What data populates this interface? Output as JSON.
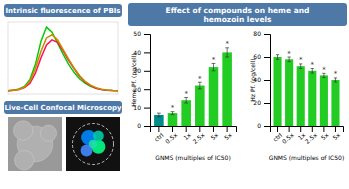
{
  "chart_data": [
    {
      "type": "line",
      "title": "Intrinsic fluorescence of PBIs",
      "annotations": [
        "Live-Cell Confocal Microscopy"
      ],
      "x": [
        0,
        0.05,
        0.1,
        0.15,
        0.2,
        0.25,
        0.3,
        0.35,
        0.4,
        0.45,
        0.5,
        0.55,
        0.6,
        0.65,
        0.7,
        0.75,
        0.8,
        0.85,
        0.9,
        0.95,
        1.0
      ],
      "series": [
        {
          "color": "#00cc00",
          "values": [
            0.0,
            0.01,
            0.03,
            0.07,
            0.18,
            0.42,
            0.78,
            1.0,
            0.92,
            0.75,
            0.58,
            0.42,
            0.29,
            0.19,
            0.12,
            0.07,
            0.04,
            0.02,
            0.01,
            0.005,
            0.002
          ]
        },
        {
          "color": "#ff1155",
          "values": [
            0.0,
            0.01,
            0.02,
            0.05,
            0.12,
            0.28,
            0.52,
            0.72,
            0.8,
            0.76,
            0.63,
            0.48,
            0.35,
            0.23,
            0.14,
            0.08,
            0.04,
            0.02,
            0.01,
            0.004,
            0.001
          ]
        },
        {
          "color": "#cc8800",
          "values": [
            0.0,
            0.01,
            0.02,
            0.06,
            0.15,
            0.35,
            0.62,
            0.83,
            0.88,
            0.8,
            0.65,
            0.5,
            0.36,
            0.24,
            0.15,
            0.09,
            0.05,
            0.025,
            0.012,
            0.005,
            0.002
          ]
        }
      ],
      "xlim": [
        0,
        1
      ],
      "ylim": [
        -0.05,
        1.08
      ],
      "tick_labels": false
    },
    {
      "type": "bar",
      "title": "Effect of compounds on heme and\nhemozoin levels",
      "categories": [
        "ctrl",
        "0.5x",
        "1x",
        "2.5x",
        "5x",
        "5x"
      ],
      "values": [
        6,
        7,
        14,
        22,
        32,
        40
      ],
      "errors": [
        1.0,
        0.8,
        1.5,
        1.8,
        2.0,
        2.5
      ],
      "colors": [
        "#008B8B",
        "#22cc22",
        "#22cc22",
        "#22cc22",
        "#22cc22",
        "#22cc22"
      ],
      "annotations": [
        null,
        "*",
        "*",
        "*",
        "*",
        "*"
      ],
      "xlabel": "GNMS (multiples of IC50)",
      "ylabel": "Heme Pf. (pg/cell)",
      "ylim": [
        0,
        50
      ],
      "yticks": [
        0,
        10,
        20,
        30,
        40,
        50
      ]
    },
    {
      "type": "bar",
      "categories": [
        "ctrl",
        "0.5x",
        "1x",
        "2.5x",
        "5x",
        "5x"
      ],
      "values": [
        60,
        58,
        52,
        48,
        44,
        40
      ],
      "errors": [
        2.0,
        2.0,
        2.0,
        2.0,
        1.8,
        1.8
      ],
      "colors": [
        "#22cc22",
        "#22cc22",
        "#22cc22",
        "#22cc22",
        "#22cc22",
        "#22cc22"
      ],
      "annotations": [
        null,
        "*",
        "*",
        "*",
        "*",
        "*"
      ],
      "xlabel": "GNMS (multiples of IC50)",
      "ylabel": "Hz Pf. (pg/cell)",
      "ylim": [
        0,
        80
      ],
      "yticks": [
        0,
        20,
        40,
        60,
        80
      ]
    }
  ]
}
